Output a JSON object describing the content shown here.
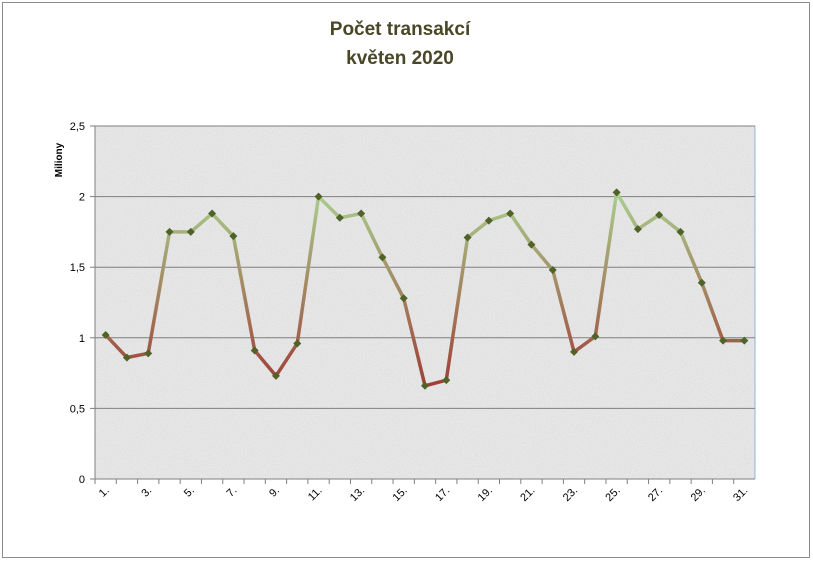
{
  "chart_data": {
    "type": "line",
    "title": "Počet transakcí",
    "subtitle": "květen 2020",
    "y_label": "Miliony",
    "categories": [
      "1.",
      null,
      "3.",
      null,
      "5.",
      null,
      "7.",
      null,
      "9.",
      null,
      "11.",
      null,
      "13.",
      null,
      "15.",
      null,
      "17.",
      null,
      "19.",
      null,
      "21.",
      null,
      "23.",
      null,
      "25.",
      null,
      "27.",
      null,
      "29.",
      null,
      "31."
    ],
    "series": [
      {
        "values": [
          1.02,
          0.86,
          0.89,
          1.75,
          1.75,
          1.88,
          1.72,
          0.91,
          0.73,
          0.96,
          2.0,
          1.85,
          1.88,
          1.57,
          1.28,
          0.66,
          0.7,
          1.71,
          1.83,
          1.88,
          1.66,
          1.48,
          0.9,
          1.01,
          2.03,
          1.77,
          1.87,
          1.75,
          1.39,
          0.98,
          0.98
        ],
        "color_high": "#a9d18e",
        "color_low": "#9e3b35",
        "marker_color": "#4f6228"
      }
    ],
    "ylim": [
      0,
      2.5
    ],
    "yticks": [
      0,
      {
        "value": 0.5,
        "label": "0,5"
      },
      1,
      {
        "value": 1.5,
        "label": "1,5"
      },
      2,
      {
        "value": 2.5,
        "label": "2,5"
      }
    ],
    "grid": true
  }
}
